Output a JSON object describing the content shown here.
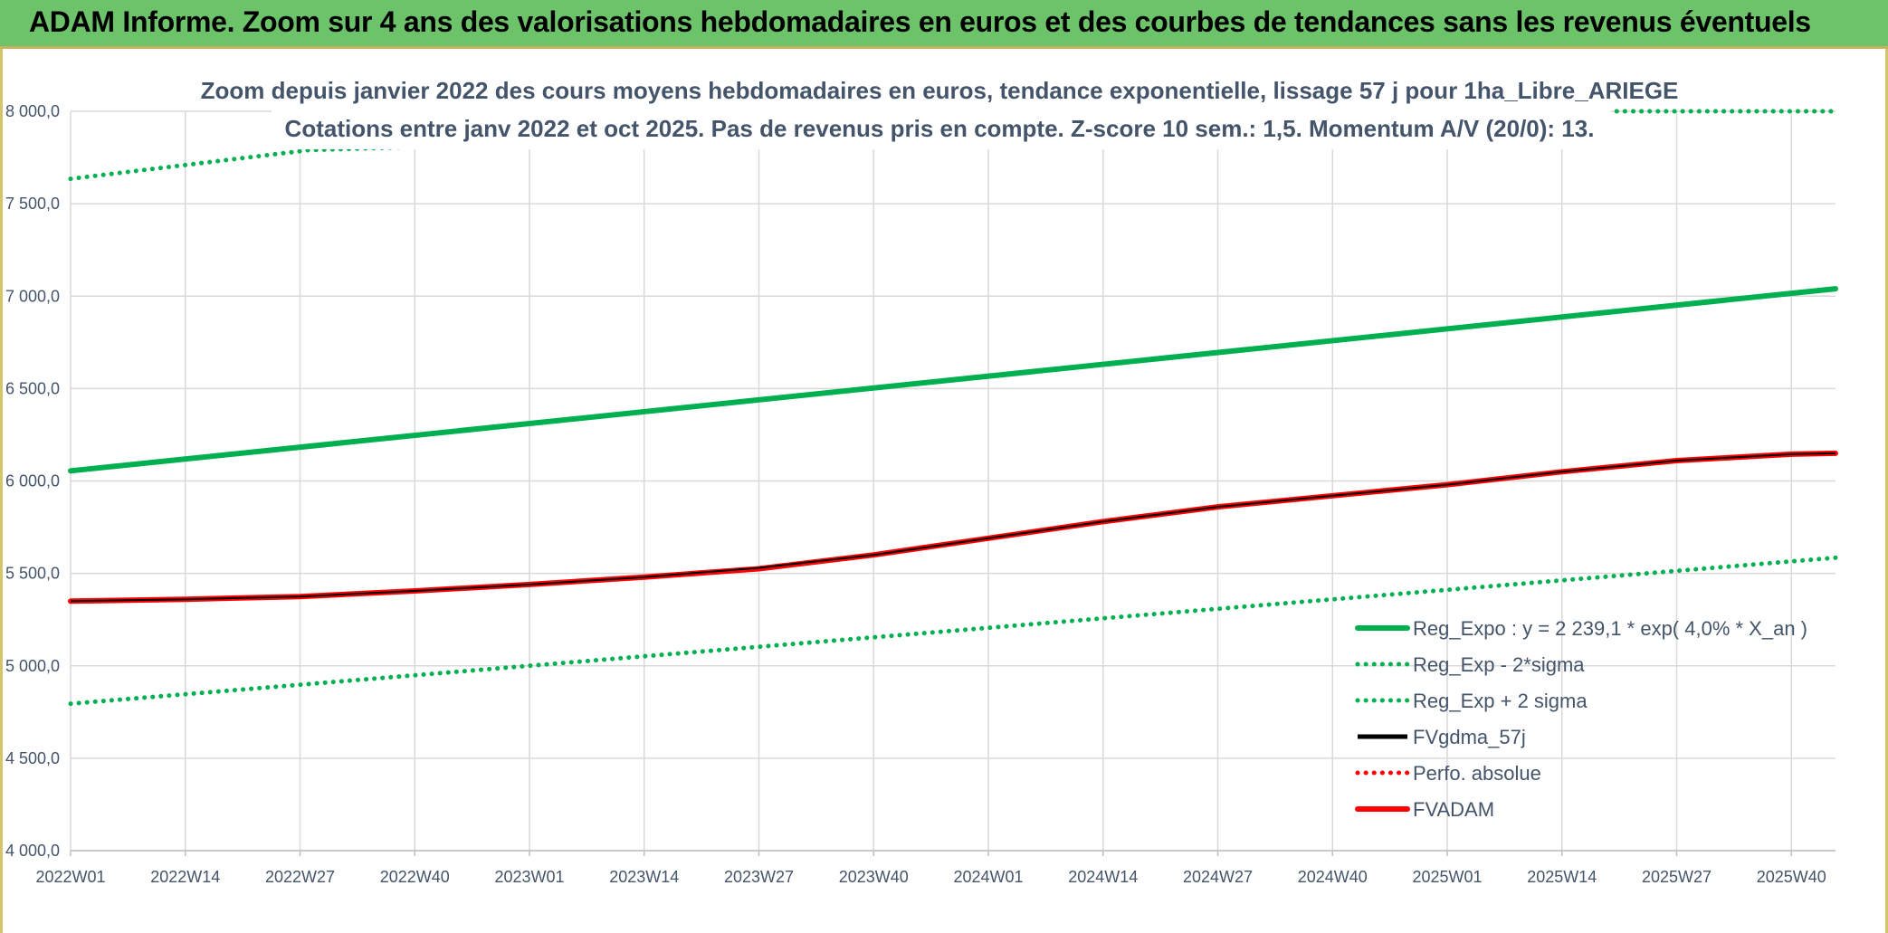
{
  "header": {
    "title": "ADAM Informe. Zoom sur 4 ans des valorisations hebdomadaires en euros et des courbes de tendances sans les revenus éventuels"
  },
  "colors": {
    "green": "#00b050",
    "red": "#ff0000",
    "black": "#000000",
    "grid": "#d9d9d9",
    "header_bg": "#6cc36a",
    "text": "#44546a"
  },
  "chart_data": {
    "type": "line",
    "title_lines": [
      "Zoom depuis janvier 2022 des cours moyens hebdomadaires en euros, tendance exponentielle, lissage 57 j pour 1ha_Libre_ARIEGE",
      "Cotations entre janv 2022 et oct 2025. Pas de revenus pris en compte. Z-score 10 sem.: 1,5. Momentum A/V (20/0): 13."
    ],
    "ylim": [
      4000,
      8000
    ],
    "y_ticks": [
      "4 000,0",
      "4 500,0",
      "5 000,0",
      "5 500,0",
      "6 000,0",
      "6 500,0",
      "7 000,0",
      "7 500,0",
      "8 000,0"
    ],
    "y_tick_values": [
      4000,
      4500,
      5000,
      5500,
      6000,
      6500,
      7000,
      7500,
      8000
    ],
    "x_ticks": [
      "2022W01",
      "2022W14",
      "2022W27",
      "2022W40",
      "2023W01",
      "2023W14",
      "2023W27",
      "2023W40",
      "2024W01",
      "2024W14",
      "2024W27",
      "2024W40",
      "2025W01",
      "2025W14",
      "2025W27",
      "2025W40"
    ],
    "x_tick_weeks": [
      0,
      13,
      26,
      39,
      52,
      65,
      78,
      91,
      104,
      117,
      130,
      143,
      156,
      169,
      182,
      195
    ],
    "x_max_week": 200,
    "series": [
      {
        "name": "Reg_Expo : y = 2 239,1 * exp( 4,0% *  X_an )",
        "style": "solid-thick",
        "color": "#00b050",
        "points": [
          [
            0,
            6055
          ],
          [
            200,
            7040
          ]
        ]
      },
      {
        "name": "Reg_Exp - 2*sigma",
        "style": "dotted",
        "color": "#00b050",
        "points": [
          [
            0,
            4795
          ],
          [
            200,
            5585
          ]
        ]
      },
      {
        "name": "Reg_Exp + 2 sigma",
        "style": "dotted",
        "color": "#00b050",
        "points": [
          [
            0,
            7635
          ],
          [
            27,
            7790
          ],
          [
            172,
            8000
          ],
          [
            200,
            8000
          ]
        ]
      },
      {
        "name": "FVgdma_57j",
        "style": "solid",
        "color": "#000000",
        "points": [
          [
            0,
            5350
          ],
          [
            13,
            5360
          ],
          [
            26,
            5375
          ],
          [
            39,
            5405
          ],
          [
            52,
            5440
          ],
          [
            65,
            5480
          ],
          [
            78,
            5530
          ],
          [
            91,
            5600
          ],
          [
            104,
            5690
          ],
          [
            117,
            5780
          ],
          [
            130,
            5860
          ],
          [
            143,
            5920
          ],
          [
            156,
            5980
          ],
          [
            169,
            6050
          ],
          [
            182,
            6110
          ],
          [
            195,
            6145
          ],
          [
            200,
            6150
          ]
        ]
      },
      {
        "name": "Perfo. absolue",
        "style": "dotted",
        "color": "#ff0000",
        "points": []
      },
      {
        "name": "FVADAM",
        "style": "solid-thick",
        "color": "#ff0000",
        "points": [
          [
            0,
            5350
          ],
          [
            13,
            5360
          ],
          [
            26,
            5375
          ],
          [
            39,
            5405
          ],
          [
            52,
            5440
          ],
          [
            65,
            5480
          ],
          [
            78,
            5525
          ],
          [
            91,
            5600
          ],
          [
            104,
            5690
          ],
          [
            117,
            5780
          ],
          [
            130,
            5860
          ],
          [
            143,
            5920
          ],
          [
            156,
            5980
          ],
          [
            169,
            6050
          ],
          [
            182,
            6110
          ],
          [
            195,
            6145
          ],
          [
            200,
            6150
          ]
        ]
      }
    ]
  }
}
